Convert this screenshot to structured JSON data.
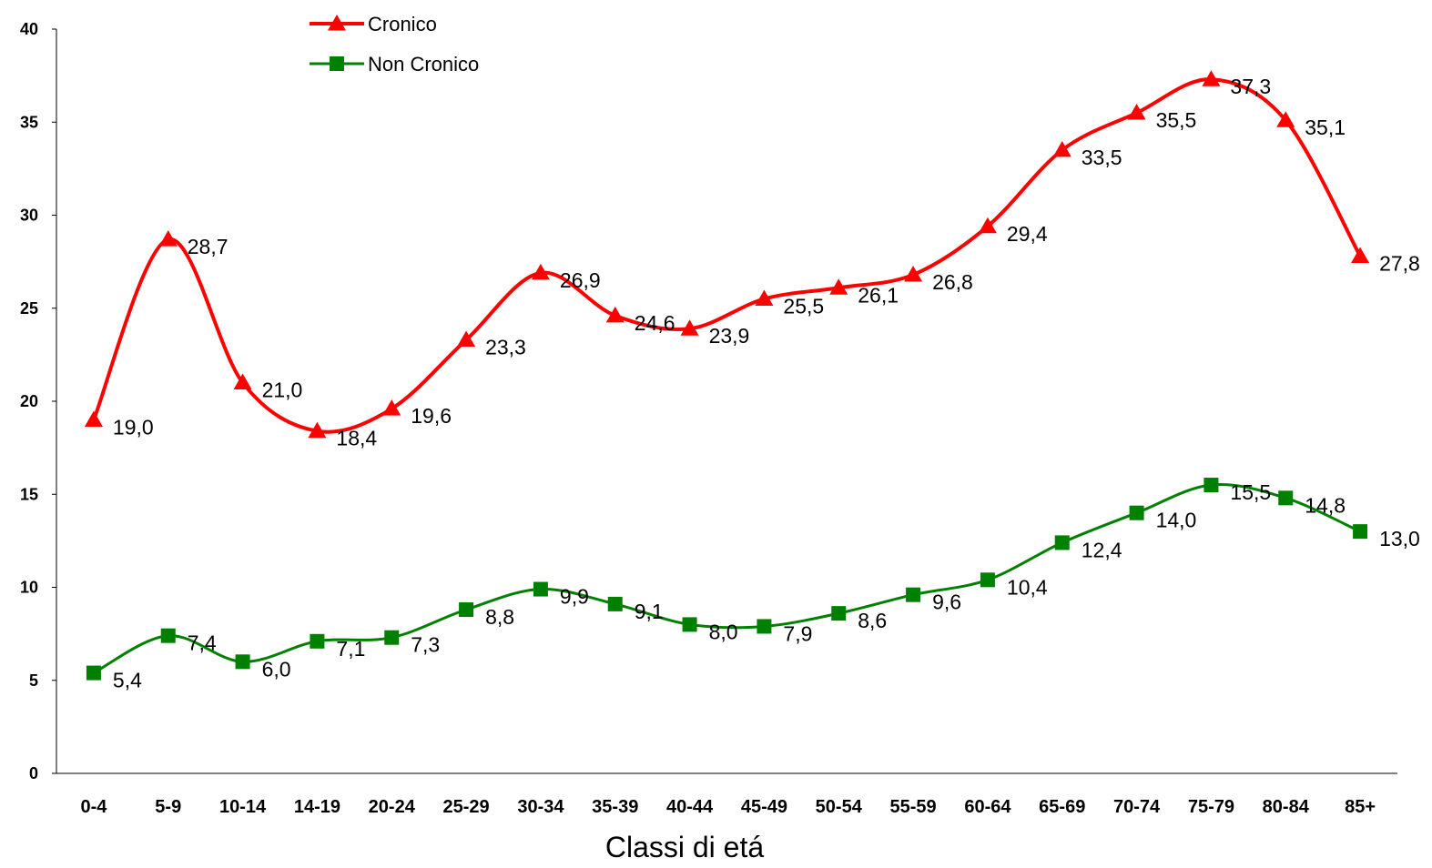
{
  "chart_data": {
    "type": "line",
    "categories": [
      "0-4",
      "5-9",
      "10-14",
      "14-19",
      "20-24",
      "25-29",
      "30-34",
      "35-39",
      "40-44",
      "45-49",
      "50-54",
      "55-59",
      "60-64",
      "65-69",
      "70-74",
      "75-79",
      "80-84",
      "85+"
    ],
    "series": [
      {
        "name": "Cronico",
        "color": "#ff0000",
        "marker": "triangle",
        "values": [
          19.0,
          28.7,
          21.0,
          18.4,
          19.6,
          23.3,
          26.9,
          24.6,
          23.9,
          25.5,
          26.1,
          26.8,
          29.4,
          33.5,
          35.5,
          37.3,
          35.1,
          27.8
        ],
        "labels": [
          "19,0",
          "28,7",
          "21,0",
          "18,4",
          "19,6",
          "23,3",
          "26,9",
          "24,6",
          "23,9",
          "25,5",
          "26,1",
          "26,8",
          "29,4",
          "33,5",
          "35,5",
          "37,3",
          "35,1",
          "27,8"
        ]
      },
      {
        "name": "Non Cronico",
        "color": "#008000",
        "marker": "square",
        "values": [
          5.4,
          7.4,
          6.0,
          7.1,
          7.3,
          8.8,
          9.9,
          9.1,
          8.0,
          7.9,
          8.6,
          9.6,
          10.4,
          12.4,
          14.0,
          15.5,
          14.8,
          13.0
        ],
        "labels": [
          "5,4",
          "7,4",
          "6,0",
          "7,1",
          "7,3",
          "8,8",
          "9,9",
          "9,1",
          "8,0",
          "7,9",
          "8,6",
          "9,6",
          "10,4",
          "12,4",
          "14,0",
          "15,5",
          "14,8",
          "13,0"
        ]
      }
    ],
    "yticks": [
      "0",
      "5",
      "10",
      "15",
      "20",
      "25",
      "30",
      "35",
      "40"
    ],
    "ylim": [
      0,
      40
    ],
    "xlabel": "Classi di etá",
    "ylabel": "",
    "title": "",
    "grid": false,
    "legend": "top-left",
    "smooth": true
  }
}
